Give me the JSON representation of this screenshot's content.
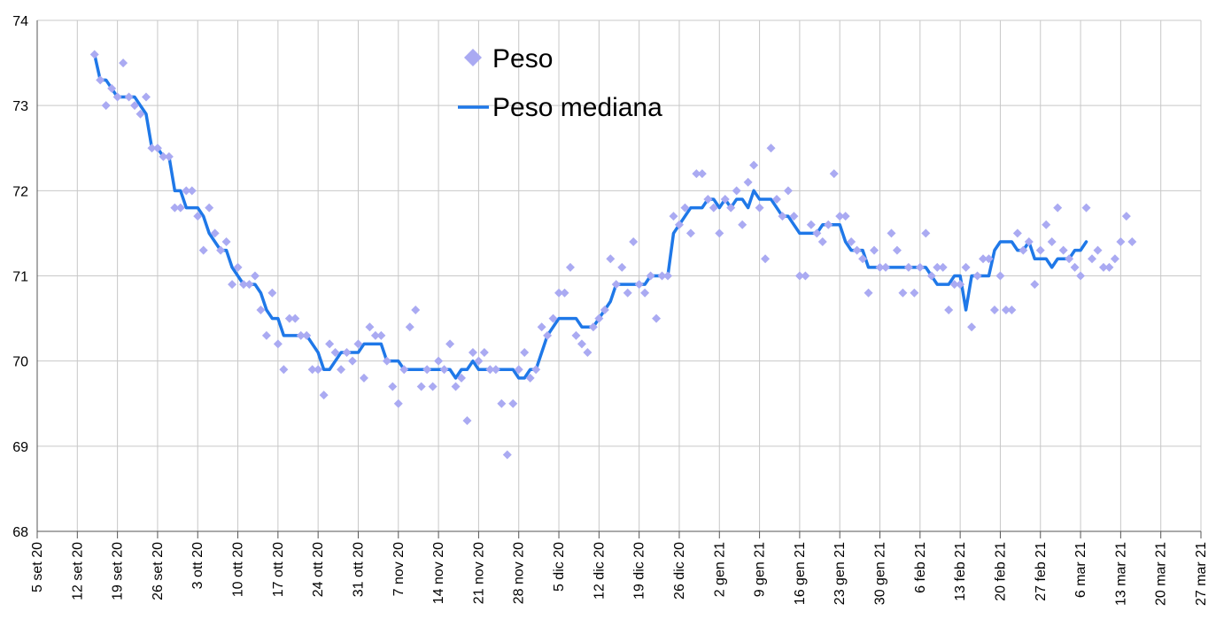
{
  "chart_data": {
    "type": "scatter",
    "ylim": [
      68,
      74
    ],
    "yticks": [
      "68",
      "69",
      "70",
      "71",
      "72",
      "73",
      "74"
    ],
    "xticks": [
      "5 set 20",
      "12 set 20",
      "19 set 20",
      "26 set 20",
      "3 ott 20",
      "10 ott 20",
      "17 ott 20",
      "24 ott 20",
      "31 ott 20",
      "7 nov 20",
      "14 nov 20",
      "21 nov 20",
      "28 nov 20",
      "5 dic 20",
      "12 dic 20",
      "19 dic 20",
      "26 dic 20",
      "2 gen 21",
      "9 gen 21",
      "16 gen 21",
      "23 gen 21",
      "30 gen 21",
      "6 feb 21",
      "13 feb 21",
      "20 feb 21",
      "27 feb 21",
      "6 mar 21",
      "13 mar 21",
      "20 mar 21",
      "27 mar 21"
    ],
    "grid": true,
    "legend_position": "top-center",
    "colors": {
      "points": "#aaaaf2",
      "line": "#1f78e8",
      "grid": "#c8c8c8",
      "axis": "#555555"
    },
    "series": [
      {
        "name": "Peso",
        "kind": "scatter",
        "start_date": "2020-09-15",
        "values": [
          73.6,
          73.3,
          73.0,
          73.2,
          73.1,
          73.5,
          73.1,
          73.0,
          72.9,
          73.1,
          72.5,
          72.5,
          72.4,
          72.4,
          71.8,
          71.8,
          72.0,
          72.0,
          71.7,
          71.3,
          71.8,
          71.5,
          71.3,
          71.4,
          70.9,
          71.1,
          70.9,
          70.9,
          71.0,
          70.6,
          70.3,
          70.8,
          70.2,
          69.9,
          70.5,
          70.5,
          70.3,
          70.3,
          69.9,
          69.9,
          69.6,
          70.2,
          70.1,
          69.9,
          70.1,
          70.0,
          70.2,
          69.8,
          70.4,
          70.3,
          70.3,
          70.0,
          69.7,
          69.5,
          69.9,
          70.4,
          70.6,
          69.7,
          69.9,
          69.7,
          70.0,
          69.9,
          70.2,
          69.7,
          69.8,
          69.3,
          70.1,
          70.0,
          70.1,
          69.9,
          69.9,
          69.5,
          68.9,
          69.5,
          69.9,
          70.1,
          69.8,
          69.9,
          70.4,
          70.3,
          70.5,
          70.8,
          70.8,
          71.1,
          70.3,
          70.2,
          70.1,
          70.4,
          70.5,
          70.6,
          71.2,
          70.9,
          71.1,
          70.8,
          71.4,
          70.9,
          70.8,
          71.0,
          70.5,
          71.0,
          71.0,
          71.7,
          71.6,
          71.8,
          71.5,
          72.2,
          72.2,
          71.9,
          71.8,
          71.5,
          71.9,
          71.8,
          72.0,
          71.6,
          72.1,
          72.3,
          71.8,
          71.2,
          72.5,
          71.9,
          71.7,
          72.0,
          71.7,
          71.0,
          71.0,
          71.6,
          71.5,
          71.4,
          71.6,
          72.2,
          71.7,
          71.7,
          71.4,
          71.3,
          71.2,
          70.8,
          71.3,
          71.1,
          71.1,
          71.5,
          71.3,
          70.8,
          71.1,
          70.8,
          71.1,
          71.5,
          71.0,
          71.1,
          71.1,
          70.6,
          70.9,
          70.9,
          71.1,
          70.4,
          71.0,
          71.2,
          71.2,
          70.6,
          71.0,
          70.6,
          70.6,
          71.5,
          71.3,
          71.4,
          70.9,
          71.3,
          71.6,
          71.4,
          71.8,
          71.3,
          71.2,
          71.1,
          71.0,
          71.8,
          71.2,
          71.3,
          71.1,
          71.1,
          71.2,
          71.4,
          71.7,
          71.4
        ]
      },
      {
        "name": "Peso mediana",
        "kind": "line",
        "start_date": "2020-09-15",
        "values": [
          73.6,
          73.3,
          73.3,
          73.2,
          73.1,
          73.1,
          73.1,
          73.1,
          73.0,
          72.9,
          72.5,
          72.5,
          72.4,
          72.4,
          72.0,
          72.0,
          71.8,
          71.8,
          71.8,
          71.7,
          71.5,
          71.4,
          71.3,
          71.3,
          71.1,
          71.0,
          70.9,
          70.9,
          70.9,
          70.8,
          70.6,
          70.5,
          70.5,
          70.3,
          70.3,
          70.3,
          70.3,
          70.3,
          70.2,
          70.1,
          69.9,
          69.9,
          70.0,
          70.1,
          70.1,
          70.1,
          70.1,
          70.2,
          70.2,
          70.2,
          70.2,
          70.0,
          70.0,
          70.0,
          69.9,
          69.9,
          69.9,
          69.9,
          69.9,
          69.9,
          69.9,
          69.9,
          69.9,
          69.8,
          69.9,
          69.9,
          70.0,
          69.9,
          69.9,
          69.9,
          69.9,
          69.9,
          69.9,
          69.9,
          69.8,
          69.8,
          69.9,
          69.9,
          70.1,
          70.3,
          70.4,
          70.5,
          70.5,
          70.5,
          70.5,
          70.4,
          70.4,
          70.4,
          70.5,
          70.6,
          70.7,
          70.9,
          70.9,
          70.9,
          70.9,
          70.9,
          70.9,
          71.0,
          71.0,
          71.0,
          71.0,
          71.5,
          71.6,
          71.7,
          71.8,
          71.8,
          71.8,
          71.9,
          71.9,
          71.8,
          71.9,
          71.8,
          71.9,
          71.9,
          71.8,
          72.0,
          71.9,
          71.9,
          71.9,
          71.8,
          71.7,
          71.7,
          71.6,
          71.5,
          71.5,
          71.5,
          71.5,
          71.6,
          71.6,
          71.6,
          71.6,
          71.4,
          71.3,
          71.3,
          71.3,
          71.1,
          71.1,
          71.1,
          71.1,
          71.1,
          71.1,
          71.1,
          71.1,
          71.1,
          71.1,
          71.1,
          71.0,
          70.9,
          70.9,
          70.9,
          71.0,
          71.0,
          70.6,
          71.0,
          71.0,
          71.0,
          71.0,
          71.3,
          71.4,
          71.4,
          71.4,
          71.3,
          71.3,
          71.4,
          71.2,
          71.2,
          71.2,
          71.1,
          71.2,
          71.2,
          71.2,
          71.3,
          71.3,
          71.4
        ]
      }
    ]
  }
}
